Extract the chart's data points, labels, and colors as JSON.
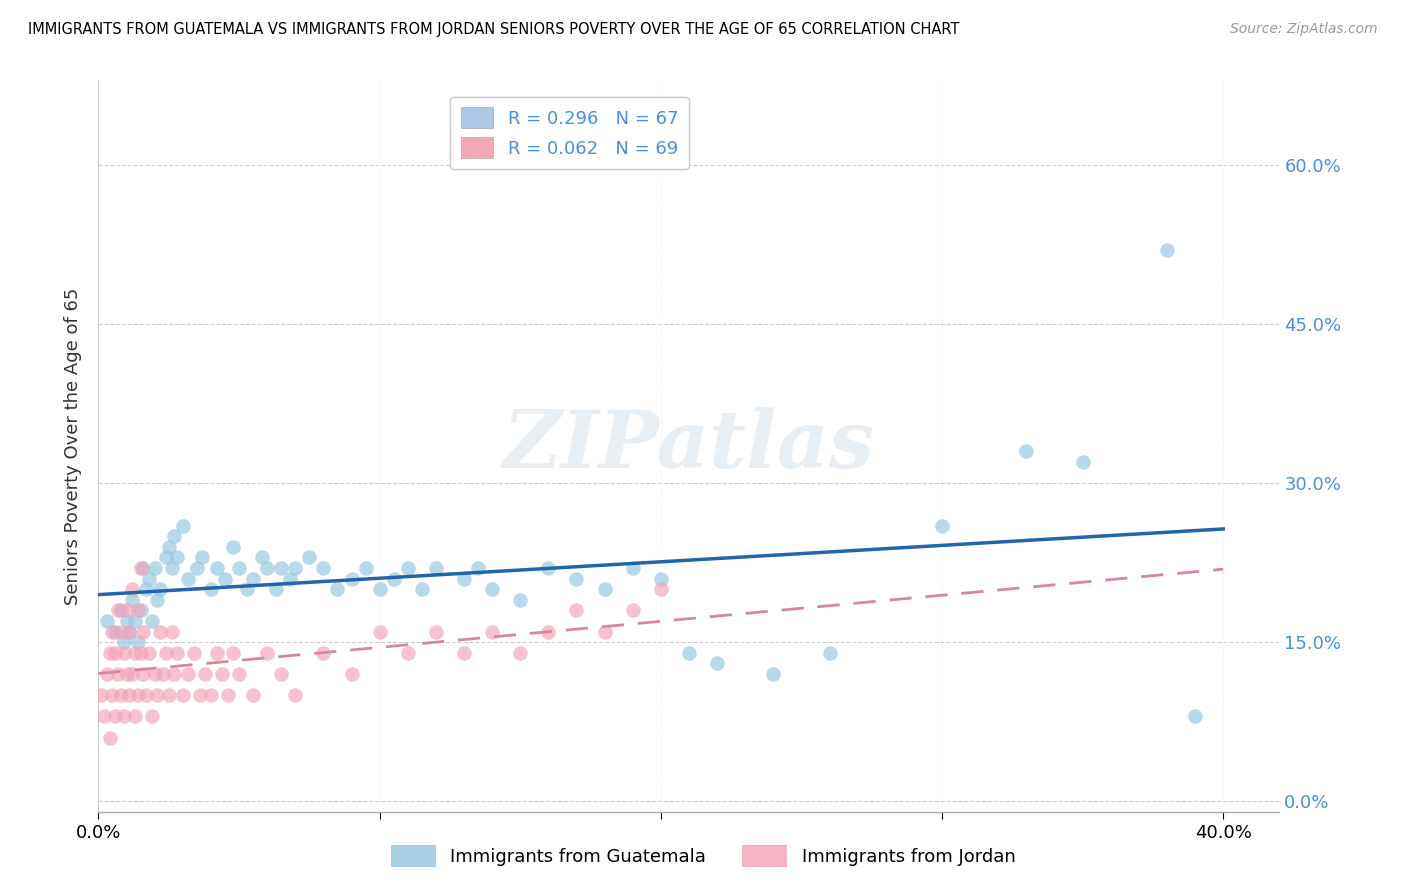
{
  "title": "IMMIGRANTS FROM GUATEMALA VS IMMIGRANTS FROM JORDAN SENIORS POVERTY OVER THE AGE OF 65 CORRELATION CHART",
  "source": "Source: ZipAtlas.com",
  "ylabel": "Seniors Poverty Over the Age of 65",
  "xlim": [
    0.0,
    0.42
  ],
  "ylim": [
    -0.01,
    0.68
  ],
  "yticks": [
    0.0,
    0.15,
    0.3,
    0.45,
    0.6
  ],
  "xticks": [
    0.0,
    0.1,
    0.2,
    0.3,
    0.4
  ],
  "guatemala_color": "#92c5de",
  "jordan_color": "#f4a0b8",
  "guatemala_line_color": "#2166ac",
  "jordan_line_color": "#d6889a",
  "watermark_text": "ZIPatlas",
  "legend_r1": "R = 0.296   N = 67",
  "legend_r2": "R = 0.062   N = 69",
  "legend_color1": "#aec6e8",
  "legend_color2": "#f4a8b8",
  "guatemala_x": [
    0.003,
    0.006,
    0.008,
    0.009,
    0.01,
    0.011,
    0.012,
    0.013,
    0.014,
    0.015,
    0.016,
    0.017,
    0.018,
    0.019,
    0.02,
    0.021,
    0.022,
    0.024,
    0.025,
    0.026,
    0.027,
    0.028,
    0.03,
    0.032,
    0.035,
    0.037,
    0.04,
    0.042,
    0.045,
    0.048,
    0.05,
    0.053,
    0.055,
    0.058,
    0.06,
    0.063,
    0.065,
    0.068,
    0.07,
    0.075,
    0.08,
    0.085,
    0.09,
    0.095,
    0.1,
    0.105,
    0.11,
    0.115,
    0.12,
    0.13,
    0.135,
    0.14,
    0.15,
    0.16,
    0.17,
    0.18,
    0.19,
    0.2,
    0.21,
    0.22,
    0.24,
    0.26,
    0.3,
    0.33,
    0.35,
    0.38,
    0.39
  ],
  "guatemala_y": [
    0.17,
    0.16,
    0.18,
    0.15,
    0.17,
    0.16,
    0.19,
    0.17,
    0.15,
    0.18,
    0.22,
    0.2,
    0.21,
    0.17,
    0.22,
    0.19,
    0.2,
    0.23,
    0.24,
    0.22,
    0.25,
    0.23,
    0.26,
    0.21,
    0.22,
    0.23,
    0.2,
    0.22,
    0.21,
    0.24,
    0.22,
    0.2,
    0.21,
    0.23,
    0.22,
    0.2,
    0.22,
    0.21,
    0.22,
    0.23,
    0.22,
    0.2,
    0.21,
    0.22,
    0.2,
    0.21,
    0.22,
    0.2,
    0.22,
    0.21,
    0.22,
    0.2,
    0.19,
    0.22,
    0.21,
    0.2,
    0.22,
    0.21,
    0.14,
    0.13,
    0.12,
    0.14,
    0.26,
    0.33,
    0.32,
    0.52,
    0.08
  ],
  "jordan_x": [
    0.001,
    0.002,
    0.003,
    0.004,
    0.004,
    0.005,
    0.005,
    0.006,
    0.006,
    0.007,
    0.007,
    0.008,
    0.008,
    0.009,
    0.009,
    0.01,
    0.01,
    0.011,
    0.011,
    0.012,
    0.012,
    0.013,
    0.013,
    0.014,
    0.014,
    0.015,
    0.015,
    0.016,
    0.016,
    0.017,
    0.018,
    0.019,
    0.02,
    0.021,
    0.022,
    0.023,
    0.024,
    0.025,
    0.026,
    0.027,
    0.028,
    0.03,
    0.032,
    0.034,
    0.036,
    0.038,
    0.04,
    0.042,
    0.044,
    0.046,
    0.048,
    0.05,
    0.055,
    0.06,
    0.065,
    0.07,
    0.08,
    0.09,
    0.1,
    0.11,
    0.12,
    0.13,
    0.14,
    0.15,
    0.16,
    0.17,
    0.18,
    0.19,
    0.2
  ],
  "jordan_y": [
    0.1,
    0.08,
    0.12,
    0.06,
    0.14,
    0.1,
    0.16,
    0.08,
    0.14,
    0.12,
    0.18,
    0.1,
    0.16,
    0.08,
    0.14,
    0.12,
    0.18,
    0.1,
    0.16,
    0.12,
    0.2,
    0.08,
    0.14,
    0.1,
    0.18,
    0.14,
    0.22,
    0.12,
    0.16,
    0.1,
    0.14,
    0.08,
    0.12,
    0.1,
    0.16,
    0.12,
    0.14,
    0.1,
    0.16,
    0.12,
    0.14,
    0.1,
    0.12,
    0.14,
    0.1,
    0.12,
    0.1,
    0.14,
    0.12,
    0.1,
    0.14,
    0.12,
    0.1,
    0.14,
    0.12,
    0.1,
    0.14,
    0.12,
    0.16,
    0.14,
    0.16,
    0.14,
    0.16,
    0.14,
    0.16,
    0.18,
    0.16,
    0.18,
    0.2
  ]
}
